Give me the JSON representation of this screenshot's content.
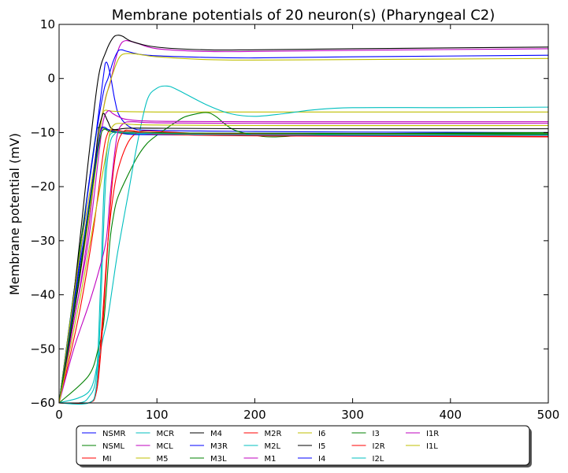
{
  "chart_data": {
    "type": "line",
    "title": "Membrane potentials of 20 neuron(s) (Pharyngeal C2)",
    "xlabel": "",
    "ylabel": "Membrane potential (mV)",
    "xlim": [
      0,
      500
    ],
    "ylim": [
      -60,
      10
    ],
    "xticks": [
      0,
      100,
      200,
      300,
      400,
      500
    ],
    "yticks": [
      -60,
      -50,
      -40,
      -30,
      -20,
      -10,
      0,
      10
    ],
    "grid": false,
    "legend_position": "bottom-center",
    "legend_columns": 8,
    "series": [
      {
        "name": "NSMR",
        "color": "#0000ff",
        "points": [
          [
            0,
            -60
          ],
          [
            20,
            -33
          ],
          [
            35,
            -14
          ],
          [
            45,
            0
          ],
          [
            48,
            3
          ],
          [
            52,
            1
          ],
          [
            57,
            -4
          ],
          [
            62,
            -7
          ],
          [
            75,
            -9.2
          ],
          [
            100,
            -9.6
          ],
          [
            200,
            -9.8
          ],
          [
            300,
            -9.9
          ],
          [
            500,
            -10
          ]
        ]
      },
      {
        "name": "NSML",
        "color": "#008000",
        "points": [
          [
            0,
            -60
          ],
          [
            20,
            -33
          ],
          [
            33,
            -16
          ],
          [
            38,
            -10
          ],
          [
            41,
            -9
          ],
          [
            45,
            -9.2
          ],
          [
            60,
            -9.7
          ],
          [
            100,
            -10
          ],
          [
            200,
            -10.2
          ],
          [
            500,
            -10.3
          ]
        ]
      },
      {
        "name": "MI",
        "color": "#ff0000",
        "points": [
          [
            0,
            -60
          ],
          [
            20,
            -44
          ],
          [
            35,
            -28
          ],
          [
            45,
            -14
          ],
          [
            50,
            -10
          ],
          [
            55,
            -9.5
          ],
          [
            60,
            -9.6
          ],
          [
            80,
            -10
          ],
          [
            150,
            -10.2
          ],
          [
            300,
            -10.4
          ],
          [
            500,
            -10.5
          ]
        ]
      },
      {
        "name": "MCR",
        "color": "#00bfbf",
        "points": [
          [
            0,
            -60
          ],
          [
            20,
            -60
          ],
          [
            30,
            -59
          ],
          [
            38,
            -55
          ],
          [
            42,
            -40
          ],
          [
            46,
            -20
          ],
          [
            50,
            -12
          ],
          [
            55,
            -10
          ],
          [
            70,
            -10.2
          ],
          [
            100,
            -10.3
          ],
          [
            200,
            -10.4
          ],
          [
            500,
            -10.5
          ]
        ]
      },
      {
        "name": "MCL",
        "color": "#bf00bf",
        "points": [
          [
            0,
            -60
          ],
          [
            20,
            -40
          ],
          [
            30,
            -28
          ],
          [
            40,
            -12
          ],
          [
            47,
            -4
          ],
          [
            52,
            -1
          ],
          [
            57,
            3
          ],
          [
            62,
            6
          ],
          [
            68,
            7
          ],
          [
            80,
            6.5
          ],
          [
            100,
            5.5
          ],
          [
            150,
            5.0
          ],
          [
            200,
            5.0
          ],
          [
            300,
            5.2
          ],
          [
            500,
            5.5
          ]
        ]
      },
      {
        "name": "M5",
        "color": "#bfbf00",
        "points": [
          [
            0,
            -60
          ],
          [
            20,
            -38
          ],
          [
            35,
            -20
          ],
          [
            43,
            -8
          ],
          [
            46,
            -6
          ],
          [
            52,
            -6
          ],
          [
            60,
            -6.1
          ],
          [
            100,
            -6.2
          ],
          [
            200,
            -6.2
          ],
          [
            500,
            -6.2
          ]
        ]
      },
      {
        "name": "M4",
        "color": "#000000",
        "points": [
          [
            0,
            -60
          ],
          [
            15,
            -40
          ],
          [
            30,
            -15
          ],
          [
            40,
            0
          ],
          [
            48,
            5
          ],
          [
            55,
            7.5
          ],
          [
            60,
            8
          ],
          [
            65,
            7.8
          ],
          [
            75,
            6.8
          ],
          [
            100,
            5.8
          ],
          [
            150,
            5.3
          ],
          [
            200,
            5.3
          ],
          [
            300,
            5.5
          ],
          [
            500,
            5.8
          ]
        ]
      },
      {
        "name": "M3R",
        "color": "#0000ff",
        "points": [
          [
            0,
            -60
          ],
          [
            20,
            -35
          ],
          [
            30,
            -20
          ],
          [
            40,
            -8
          ],
          [
            46,
            -2
          ],
          [
            50,
            0
          ],
          [
            55,
            3
          ],
          [
            60,
            5
          ],
          [
            64,
            5.3
          ],
          [
            70,
            5
          ],
          [
            90,
            4.3
          ],
          [
            150,
            3.9
          ],
          [
            200,
            3.8
          ],
          [
            300,
            4.0
          ],
          [
            500,
            4.3
          ]
        ]
      },
      {
        "name": "M3L",
        "color": "#008000",
        "points": [
          [
            0,
            -60
          ],
          [
            30,
            -55
          ],
          [
            40,
            -50
          ],
          [
            45,
            -46
          ],
          [
            48,
            -40
          ],
          [
            52,
            -30
          ],
          [
            56,
            -25
          ],
          [
            60,
            -22
          ],
          [
            70,
            -18
          ],
          [
            80,
            -14.5
          ],
          [
            90,
            -12
          ],
          [
            100,
            -10.5
          ],
          [
            110,
            -9.2
          ],
          [
            120,
            -8
          ],
          [
            130,
            -7
          ],
          [
            150,
            -6.3
          ],
          [
            160,
            -7
          ],
          [
            170,
            -8.5
          ],
          [
            180,
            -9.6
          ],
          [
            200,
            -10.5
          ],
          [
            220,
            -10.8
          ],
          [
            260,
            -10.4
          ],
          [
            300,
            -10.2
          ],
          [
            500,
            -10.0
          ]
        ]
      },
      {
        "name": "M2R",
        "color": "#ff0000",
        "points": [
          [
            0,
            -60
          ],
          [
            30,
            -60
          ],
          [
            38,
            -58
          ],
          [
            42,
            -50
          ],
          [
            46,
            -40
          ],
          [
            50,
            -30
          ],
          [
            55,
            -22
          ],
          [
            60,
            -17
          ],
          [
            70,
            -12
          ],
          [
            80,
            -10
          ],
          [
            90,
            -9.7
          ],
          [
            100,
            -9.8
          ],
          [
            150,
            -10.2
          ],
          [
            200,
            -10.4
          ],
          [
            300,
            -10.6
          ],
          [
            500,
            -10.7
          ]
        ]
      },
      {
        "name": "M2L",
        "color": "#00bfbf",
        "points": [
          [
            0,
            -60
          ],
          [
            30,
            -58
          ],
          [
            40,
            -52
          ],
          [
            45,
            -48
          ],
          [
            50,
            -44
          ],
          [
            55,
            -38
          ],
          [
            60,
            -32
          ],
          [
            70,
            -22
          ],
          [
            80,
            -12
          ],
          [
            90,
            -4
          ],
          [
            100,
            -1.8
          ],
          [
            110,
            -1.4
          ],
          [
            120,
            -2
          ],
          [
            150,
            -4.8
          ],
          [
            175,
            -6.5
          ],
          [
            200,
            -7
          ],
          [
            230,
            -6.5
          ],
          [
            260,
            -5.8
          ],
          [
            300,
            -5.4
          ],
          [
            400,
            -5.4
          ],
          [
            500,
            -5.3
          ]
        ]
      },
      {
        "name": "M1",
        "color": "#bf00bf",
        "points": [
          [
            0,
            -60
          ],
          [
            15,
            -45
          ],
          [
            30,
            -30
          ],
          [
            40,
            -15
          ],
          [
            45,
            -8
          ],
          [
            50,
            -6
          ],
          [
            55,
            -6.5
          ],
          [
            60,
            -7
          ],
          [
            70,
            -7.6
          ],
          [
            100,
            -7.9
          ],
          [
            200,
            -8.0
          ],
          [
            500,
            -8.0
          ]
        ]
      },
      {
        "name": "I6",
        "color": "#bfbf00",
        "points": [
          [
            0,
            -60
          ],
          [
            20,
            -34
          ],
          [
            35,
            -17
          ],
          [
            45,
            -6
          ],
          [
            50,
            -2
          ],
          [
            57,
            2
          ],
          [
            62,
            4
          ],
          [
            68,
            4.6
          ],
          [
            80,
            4.5
          ],
          [
            100,
            4.0
          ],
          [
            150,
            3.5
          ],
          [
            200,
            3.4
          ],
          [
            300,
            3.5
          ],
          [
            500,
            3.7
          ]
        ]
      },
      {
        "name": "I5",
        "color": "#000000",
        "points": [
          [
            0,
            -60
          ],
          [
            20,
            -38
          ],
          [
            35,
            -18
          ],
          [
            40,
            -10
          ],
          [
            44,
            -7
          ],
          [
            46,
            -6.5
          ],
          [
            50,
            -8
          ],
          [
            55,
            -9.4
          ],
          [
            70,
            -9.2
          ],
          [
            100,
            -9.2
          ],
          [
            200,
            -9.3
          ],
          [
            500,
            -9.3
          ]
        ]
      },
      {
        "name": "I4",
        "color": "#0000ff",
        "points": [
          [
            0,
            -60
          ],
          [
            20,
            -36
          ],
          [
            35,
            -18
          ],
          [
            42,
            -10
          ],
          [
            46,
            -9
          ],
          [
            52,
            -9.6
          ],
          [
            70,
            -10.3
          ],
          [
            100,
            -10.4
          ],
          [
            200,
            -10.5
          ],
          [
            500,
            -10.5
          ]
        ]
      },
      {
        "name": "I3",
        "color": "#008000",
        "points": [
          [
            0,
            -60
          ],
          [
            20,
            -37
          ],
          [
            35,
            -19
          ],
          [
            42,
            -11
          ],
          [
            46,
            -9.4
          ],
          [
            52,
            -9.8
          ],
          [
            70,
            -10.1
          ],
          [
            150,
            -10.1
          ],
          [
            500,
            -10.2
          ]
        ]
      },
      {
        "name": "I2R",
        "color": "#ff0000",
        "points": [
          [
            0,
            -60
          ],
          [
            30,
            -60
          ],
          [
            38,
            -58
          ],
          [
            42,
            -52
          ],
          [
            46,
            -42
          ],
          [
            50,
            -30
          ],
          [
            55,
            -18
          ],
          [
            60,
            -12
          ],
          [
            66,
            -9.8
          ],
          [
            72,
            -9.6
          ],
          [
            80,
            -9.8
          ],
          [
            100,
            -10.3
          ],
          [
            200,
            -10.6
          ],
          [
            500,
            -10.8
          ]
        ]
      },
      {
        "name": "I2L",
        "color": "#00bfbf",
        "points": [
          [
            0,
            -60
          ],
          [
            30,
            -60
          ],
          [
            38,
            -57
          ],
          [
            42,
            -45
          ],
          [
            45,
            -30
          ],
          [
            48,
            -18
          ],
          [
            52,
            -12
          ],
          [
            57,
            -10.2
          ],
          [
            62,
            -9.9
          ],
          [
            70,
            -10
          ],
          [
            100,
            -10.2
          ],
          [
            200,
            -10.4
          ],
          [
            500,
            -10.5
          ]
        ]
      },
      {
        "name": "I1R",
        "color": "#bf00bf",
        "points": [
          [
            0,
            -60
          ],
          [
            15,
            -50
          ],
          [
            30,
            -42
          ],
          [
            40,
            -36
          ],
          [
            48,
            -30
          ],
          [
            52,
            -22
          ],
          [
            56,
            -15
          ],
          [
            60,
            -10
          ],
          [
            66,
            -8.3
          ],
          [
            75,
            -8.0
          ],
          [
            100,
            -8.2
          ],
          [
            200,
            -8.3
          ],
          [
            500,
            -8.3
          ]
        ]
      },
      {
        "name": "I1L",
        "color": "#bfbf00",
        "points": [
          [
            0,
            -60
          ],
          [
            20,
            -42
          ],
          [
            35,
            -27
          ],
          [
            42,
            -20
          ],
          [
            48,
            -14
          ],
          [
            52,
            -10
          ],
          [
            56,
            -8.6
          ],
          [
            62,
            -8.3
          ],
          [
            75,
            -8.5
          ],
          [
            100,
            -8.6
          ],
          [
            200,
            -8.7
          ],
          [
            500,
            -8.7
          ]
        ]
      }
    ]
  }
}
